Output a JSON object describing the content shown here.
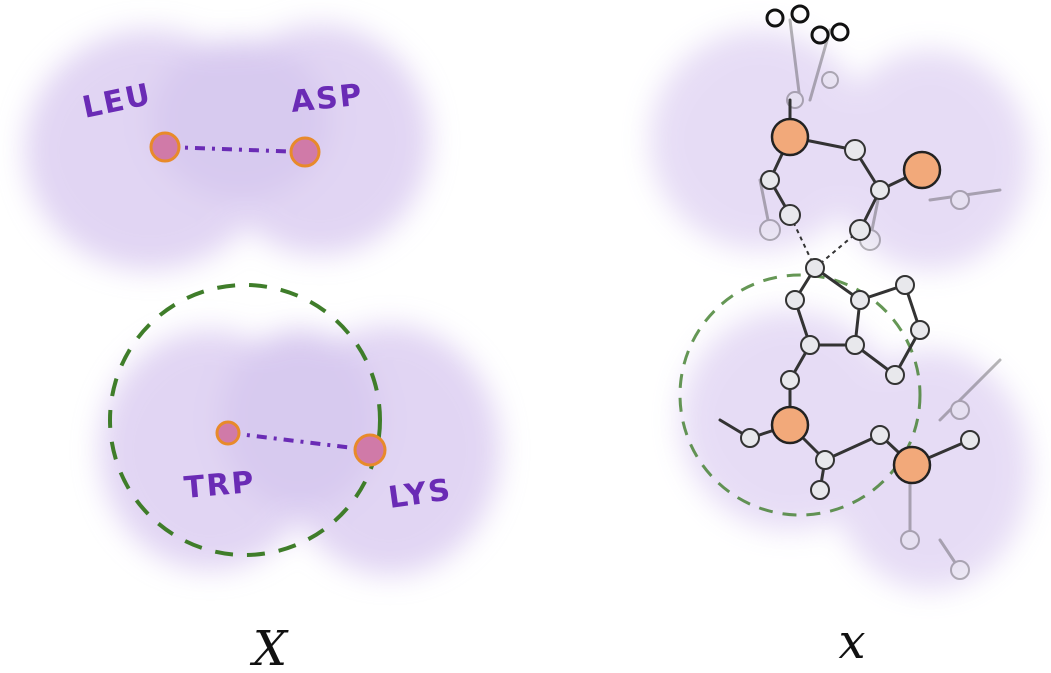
{
  "left_panel": {
    "residues": [
      "LEU",
      "ASP",
      "TRP",
      "LYS"
    ],
    "caption": "X"
  },
  "right_panel": {
    "caption": "x"
  }
}
